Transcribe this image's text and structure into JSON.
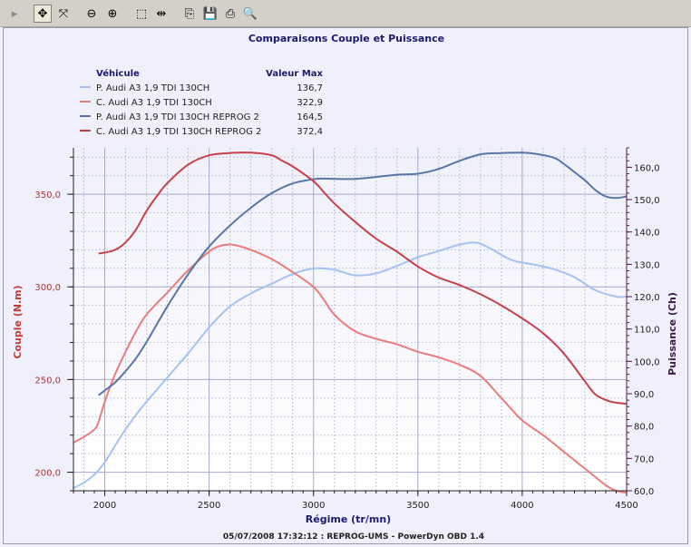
{
  "toolbar": {
    "buttons": [
      {
        "name": "expand-arrow-icon",
        "glyph": "▸"
      },
      {
        "name": "pan-icon",
        "glyph": "✥"
      },
      {
        "name": "zoom-fit-icon",
        "glyph": "⤧"
      },
      {
        "name": "zoom-out-icon",
        "glyph": "⊖"
      },
      {
        "name": "zoom-in-icon",
        "glyph": "⊕"
      },
      {
        "name": "select-area-icon",
        "glyph": "⬚"
      },
      {
        "name": "split-icon",
        "glyph": "⇹"
      },
      {
        "name": "copy-icon",
        "glyph": "⎘"
      },
      {
        "name": "save-icon",
        "glyph": "💾"
      },
      {
        "name": "print-icon",
        "glyph": "⎙"
      },
      {
        "name": "print-preview-icon",
        "glyph": "🔍"
      }
    ]
  },
  "colors": {
    "p_stock": "#a4c2f4",
    "c_stock": "#ec7c7c",
    "p_reprog": "#5876a8",
    "c_reprog": "#c8404a",
    "left_axis": "#c83a3a",
    "right_axis": "#3a1a4a",
    "grid": "#9ca0c8"
  },
  "chart_data": {
    "type": "line",
    "title": "Comparaisons Couple et Puissance",
    "legend": {
      "header_vehicle": "Véhicule",
      "header_max": "Valeur Max",
      "entries": [
        {
          "label": "P. Audi A3 1,9 TDI 130CH",
          "value": "136,7"
        },
        {
          "label": "C. Audi A3 1,9 TDI 130CH",
          "value": "322,9"
        },
        {
          "label": "P. Audi A3 1,9 TDI 130CH REPROG 2",
          "value": "164,5"
        },
        {
          "label": "C. Audi A3 1,9 TDI 130CH REPROG 2",
          "value": "372,4"
        }
      ]
    },
    "xlabel": "Régime (tr/mn)",
    "ylabel_left": "Couple (N.m)",
    "ylabel_right": "Puissance (Ch)",
    "xlim": [
      1850,
      4500
    ],
    "ylim_left": [
      190,
      375
    ],
    "ylim_right": [
      60,
      166
    ],
    "x_ticks": [
      "2000",
      "2500",
      "3000",
      "3500",
      "4000",
      "4500"
    ],
    "left_ticks": [
      "200,0",
      "250,0",
      "300,0",
      "350,0"
    ],
    "right_ticks": [
      "60,0",
      "70,0",
      "80,0",
      "90,0",
      "100,0",
      "110,0",
      "120,0",
      "130,0",
      "140,0",
      "150,0",
      "160,0"
    ],
    "series": [
      {
        "name": "P. Audi A3 1,9 TDI 130CH",
        "axis": "right",
        "x": [
          1850,
          1900,
          1950,
          2000,
          2050,
          2100,
          2150,
          2200,
          2300,
          2400,
          2500,
          2600,
          2700,
          2800,
          2900,
          3000,
          3100,
          3200,
          3300,
          3400,
          3500,
          3600,
          3700,
          3780,
          3850,
          3950,
          4050,
          4150,
          4250,
          4350,
          4450,
          4500
        ],
        "y": [
          60.8,
          62.5,
          65.0,
          68.8,
          74.0,
          79.0,
          83.5,
          87.5,
          95.0,
          102.5,
          110.5,
          117.0,
          121.0,
          124.0,
          127.0,
          128.7,
          128.3,
          126.6,
          127.2,
          129.5,
          132.2,
          134.1,
          136.1,
          136.7,
          134.8,
          131.3,
          130.0,
          128.5,
          126.0,
          122.0,
          120.0,
          120.0
        ]
      },
      {
        "name": "C. Audi A3 1,9 TDI 130CH",
        "axis": "left",
        "x": [
          1850,
          1900,
          1950,
          1970,
          2000,
          2050,
          2100,
          2150,
          2200,
          2300,
          2400,
          2500,
          2550,
          2600,
          2650,
          2700,
          2800,
          2900,
          3000,
          3050,
          3100,
          3200,
          3300,
          3400,
          3500,
          3600,
          3700,
          3800,
          3900,
          4000,
          4100,
          4200,
          4300,
          4400,
          4450,
          4500
        ],
        "y": [
          216.0,
          219.0,
          223.0,
          227.0,
          238.0,
          253.0,
          265.0,
          276.0,
          285.0,
          297.0,
          309.0,
          319.0,
          322.0,
          322.9,
          321.8,
          320.0,
          315.0,
          308.0,
          300.0,
          293.0,
          285.0,
          276.0,
          272.0,
          269.0,
          265.0,
          262.0,
          258.0,
          252.0,
          240.0,
          228.0,
          220.0,
          211.0,
          202.0,
          193.0,
          190.0,
          189.0
        ]
      },
      {
        "name": "P. Audi A3 1,9 TDI 130CH REPROG 2",
        "axis": "right",
        "x": [
          1970,
          2000,
          2050,
          2100,
          2150,
          2200,
          2300,
          2400,
          2500,
          2600,
          2700,
          2800,
          2900,
          3000,
          3050,
          3100,
          3200,
          3300,
          3400,
          3500,
          3600,
          3700,
          3800,
          3900,
          4000,
          4050,
          4150,
          4200,
          4250,
          4300,
          4350,
          4400,
          4450,
          4500
        ],
        "y": [
          89.5,
          91.0,
          93.5,
          97.0,
          101.0,
          106.0,
          117.0,
          127.0,
          135.5,
          142.0,
          147.5,
          152.0,
          155.0,
          156.3,
          156.5,
          156.4,
          156.4,
          157.0,
          157.7,
          158.0,
          159.5,
          162.0,
          164.0,
          164.4,
          164.5,
          164.3,
          163.0,
          161.0,
          158.5,
          156.0,
          153.0,
          151.0,
          150.5,
          151.0
        ]
      },
      {
        "name": "C. Audi A3 1,9 TDI 130CH REPROG 2",
        "axis": "left",
        "x": [
          1970,
          2000,
          2050,
          2100,
          2150,
          2200,
          2250,
          2300,
          2400,
          2500,
          2600,
          2700,
          2800,
          2850,
          2900,
          3000,
          3050,
          3100,
          3200,
          3300,
          3400,
          3500,
          3600,
          3700,
          3800,
          3900,
          4000,
          4100,
          4200,
          4300,
          4350,
          4400,
          4450,
          4500
        ],
        "y": [
          318.0,
          318.5,
          320.0,
          324.0,
          331.0,
          341.0,
          349.0,
          356.0,
          366.0,
          371.0,
          372.2,
          372.4,
          371.0,
          368.0,
          365.0,
          357.0,
          351.0,
          345.0,
          335.0,
          326.0,
          319.0,
          311.0,
          305.0,
          301.0,
          296.0,
          290.0,
          283.0,
          275.0,
          264.0,
          249.0,
          242.0,
          239.0,
          237.5,
          237.0
        ]
      }
    ],
    "footer": "05/07/2008 17:32:12 : REPROG-UMS - PowerDyn OBD 1.4"
  }
}
